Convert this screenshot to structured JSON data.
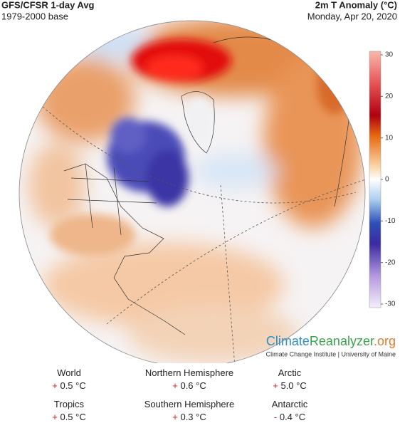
{
  "header": {
    "title": "GFS/CFSR 1-day Avg",
    "subtitle": "1979-2000 base",
    "right_title": "2m T Anomaly (°C)",
    "date": "Monday, Apr 20, 2020"
  },
  "colorbar": {
    "lim": [
      -30,
      30
    ],
    "ticks": [
      30,
      20,
      10,
      0,
      -10,
      -20,
      -30
    ]
  },
  "brand": {
    "part1": "Climate",
    "part2": "Reanalyzer",
    "part3": ".org",
    "credit": "Climate Change Institute | University of Maine"
  },
  "stats": [
    {
      "label": "World",
      "sign": "+",
      "value": "0.5 °C"
    },
    {
      "label": "Northern Hemisphere",
      "sign": "+",
      "value": "0.6 °C"
    },
    {
      "label": "Arctic",
      "sign": "+",
      "value": "5.0 °C"
    },
    {
      "label": "Tropics",
      "sign": "+",
      "value": "0.5 °C"
    },
    {
      "label": "Southern Hemisphere",
      "sign": "+",
      "value": "0.3 °C"
    },
    {
      "label": "Antarctic",
      "sign": "-",
      "value": "0.4 °C"
    }
  ]
}
